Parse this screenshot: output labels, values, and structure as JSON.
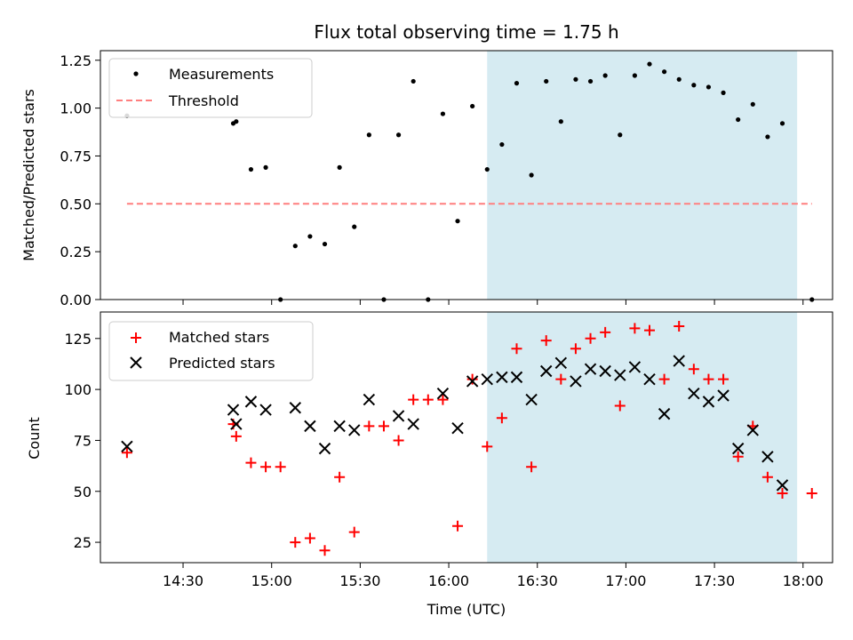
{
  "chart_data": [
    {
      "type": "scatter",
      "title": "Flux total observing time = 1.75 h",
      "xlabel": "",
      "ylabel": "Matched/Predicted stars",
      "x_unit": "minutes since 00:00 UTC",
      "xlim": [
        842,
        1090
      ],
      "ylim": [
        0,
        1.3
      ],
      "yticks": [
        0.0,
        0.25,
        0.5,
        0.75,
        1.0,
        1.25
      ],
      "ytick_labels": [
        "0.00",
        "0.25",
        "0.50",
        "0.75",
        "1.00",
        "1.25"
      ],
      "xticks": [
        870,
        900,
        930,
        960,
        990,
        1020,
        1050,
        1080
      ],
      "shaded_span": {
        "x_start": 973,
        "x_end": 1078,
        "color": "#add8e6"
      },
      "legend": {
        "position": "top-left",
        "entries": [
          "Measurements",
          "Threshold"
        ]
      },
      "series": [
        {
          "name": "Measurements",
          "marker": "dot",
          "color": "#000000",
          "points": [
            [
              851,
              0.96
            ],
            [
              887,
              0.92
            ],
            [
              888,
              0.93
            ],
            [
              893,
              0.68
            ],
            [
              898,
              0.69
            ],
            [
              903,
              0.0
            ],
            [
              908,
              0.28
            ],
            [
              913,
              0.33
            ],
            [
              918,
              0.29
            ],
            [
              923,
              0.69
            ],
            [
              928,
              0.38
            ],
            [
              933,
              0.86
            ],
            [
              938,
              0.0
            ],
            [
              943,
              0.86
            ],
            [
              948,
              1.14
            ],
            [
              953,
              0.0
            ],
            [
              958,
              0.97
            ],
            [
              963,
              0.41
            ],
            [
              968,
              1.01
            ],
            [
              973,
              0.68
            ],
            [
              978,
              0.81
            ],
            [
              983,
              1.13
            ],
            [
              988,
              0.65
            ],
            [
              993,
              1.14
            ],
            [
              998,
              0.93
            ],
            [
              1003,
              1.15
            ],
            [
              1008,
              1.14
            ],
            [
              1013,
              1.17
            ],
            [
              1018,
              0.86
            ],
            [
              1023,
              1.17
            ],
            [
              1028,
              1.23
            ],
            [
              1033,
              1.19
            ],
            [
              1038,
              1.15
            ],
            [
              1043,
              1.12
            ],
            [
              1048,
              1.11
            ],
            [
              1053,
              1.08
            ],
            [
              1058,
              0.94
            ],
            [
              1063,
              1.02
            ],
            [
              1068,
              0.85
            ],
            [
              1073,
              0.92
            ],
            [
              1083,
              0.0
            ]
          ]
        },
        {
          "name": "Threshold",
          "style": "dashed",
          "color": "#ff7f7f",
          "x_range": [
            851,
            1083
          ],
          "y": 0.5
        }
      ]
    },
    {
      "type": "scatter",
      "title": "",
      "xlabel": "Time (UTC)",
      "ylabel": "Count",
      "x_unit": "minutes since 00:00 UTC",
      "xlim": [
        842,
        1090
      ],
      "ylim": [
        15,
        138
      ],
      "yticks": [
        25,
        50,
        75,
        100,
        125
      ],
      "ytick_labels": [
        "25",
        "50",
        "75",
        "100",
        "125"
      ],
      "xticks": [
        870,
        900,
        930,
        960,
        990,
        1020,
        1050,
        1080
      ],
      "xtick_labels": [
        "14:30",
        "15:00",
        "15:30",
        "16:00",
        "16:30",
        "17:00",
        "17:30",
        "18:00"
      ],
      "shaded_span": {
        "x_start": 973,
        "x_end": 1078,
        "color": "#add8e6"
      },
      "legend": {
        "position": "top-left",
        "entries": [
          "Matched stars",
          "Predicted stars"
        ]
      },
      "series": [
        {
          "name": "Matched stars",
          "marker": "plus",
          "color": "#ff0000",
          "points": [
            [
              851,
              69
            ],
            [
              887,
              83
            ],
            [
              888,
              77
            ],
            [
              893,
              64
            ],
            [
              898,
              62
            ],
            [
              903,
              62
            ],
            [
              908,
              25
            ],
            [
              913,
              27
            ],
            [
              918,
              21
            ],
            [
              923,
              57
            ],
            [
              928,
              30
            ],
            [
              933,
              82
            ],
            [
              938,
              82
            ],
            [
              943,
              75
            ],
            [
              948,
              95
            ],
            [
              953,
              95
            ],
            [
              958,
              95
            ],
            [
              963,
              33
            ],
            [
              968,
              105
            ],
            [
              973,
              72
            ],
            [
              978,
              86
            ],
            [
              983,
              120
            ],
            [
              988,
              62
            ],
            [
              993,
              124
            ],
            [
              998,
              105
            ],
            [
              1003,
              120
            ],
            [
              1008,
              125
            ],
            [
              1013,
              128
            ],
            [
              1018,
              92
            ],
            [
              1023,
              130
            ],
            [
              1028,
              129
            ],
            [
              1033,
              105
            ],
            [
              1038,
              131
            ],
            [
              1043,
              110
            ],
            [
              1048,
              105
            ],
            [
              1053,
              105
            ],
            [
              1058,
              67
            ],
            [
              1063,
              82
            ],
            [
              1068,
              57
            ],
            [
              1073,
              49
            ],
            [
              1083,
              49
            ]
          ]
        },
        {
          "name": "Predicted stars",
          "marker": "x",
          "color": "#000000",
          "points": [
            [
              851,
              72
            ],
            [
              887,
              90
            ],
            [
              888,
              83
            ],
            [
              893,
              94
            ],
            [
              898,
              90
            ],
            [
              908,
              91
            ],
            [
              913,
              82
            ],
            [
              918,
              71
            ],
            [
              923,
              82
            ],
            [
              928,
              80
            ],
            [
              933,
              95
            ],
            [
              943,
              87
            ],
            [
              948,
              83
            ],
            [
              958,
              98
            ],
            [
              963,
              81
            ],
            [
              968,
              104
            ],
            [
              973,
              105
            ],
            [
              978,
              106
            ],
            [
              983,
              106
            ],
            [
              988,
              95
            ],
            [
              993,
              109
            ],
            [
              998,
              113
            ],
            [
              1003,
              104
            ],
            [
              1008,
              110
            ],
            [
              1013,
              109
            ],
            [
              1018,
              107
            ],
            [
              1023,
              111
            ],
            [
              1028,
              105
            ],
            [
              1033,
              88
            ],
            [
              1038,
              114
            ],
            [
              1043,
              98
            ],
            [
              1048,
              94
            ],
            [
              1053,
              97
            ],
            [
              1058,
              71
            ],
            [
              1063,
              80
            ],
            [
              1068,
              67
            ],
            [
              1073,
              53
            ]
          ]
        }
      ]
    }
  ]
}
